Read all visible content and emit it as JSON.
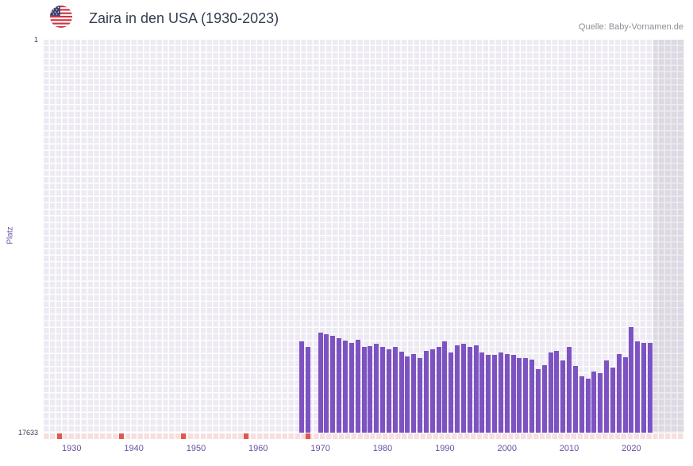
{
  "header": {
    "title": "Zaira in den USA (1930-2023)",
    "source": "Quelle: Baby-Vornamen.de",
    "flag_icon": "us-flag-icon"
  },
  "axes": {
    "y_label": "Platz",
    "y_top_tick": "1",
    "y_bottom_tick": "17633",
    "x_ticks": [
      "1930",
      "1940",
      "1950",
      "1960",
      "1970",
      "1980",
      "1990",
      "2000",
      "2010",
      "2020"
    ]
  },
  "colors": {
    "bar": "#7d53c2",
    "plot_background": "#edeaf3",
    "gridline": "#ffffff",
    "axis_label_text": "#6a4fa5",
    "title_text": "#333d50",
    "source_text": "#8d8d98",
    "no_data_strip": "#f6dfe0",
    "no_data_marker": "#df574f",
    "recent_band": "rgba(104,98,126,0.12)"
  },
  "chart_data": {
    "type": "bar",
    "title": "Zaira in den USA (1930-2023)",
    "xlabel": "",
    "ylabel": "Platz",
    "y_axis": {
      "min": 1,
      "max": 17633,
      "inverted": true
    },
    "x_domain": [
      1926,
      2029
    ],
    "recent_band_start": 2024,
    "no_data_markers": [
      1928,
      1938,
      1948,
      1958,
      1968
    ],
    "legend": "none",
    "grid": true,
    "series": [
      {
        "name": "Zaira",
        "points": [
          [
            1967,
            13550
          ],
          [
            1968,
            13800
          ],
          [
            1970,
            13150
          ],
          [
            1971,
            13200
          ],
          [
            1972,
            13300
          ],
          [
            1973,
            13400
          ],
          [
            1974,
            13500
          ],
          [
            1975,
            13600
          ],
          [
            1976,
            13450
          ],
          [
            1977,
            13800
          ],
          [
            1978,
            13750
          ],
          [
            1979,
            13650
          ],
          [
            1980,
            13800
          ],
          [
            1981,
            13900
          ],
          [
            1982,
            13800
          ],
          [
            1983,
            14000
          ],
          [
            1984,
            14200
          ],
          [
            1985,
            14100
          ],
          [
            1986,
            14300
          ],
          [
            1987,
            13950
          ],
          [
            1988,
            13900
          ],
          [
            1989,
            13800
          ],
          [
            1990,
            13550
          ],
          [
            1991,
            14050
          ],
          [
            1992,
            13700
          ],
          [
            1993,
            13650
          ],
          [
            1994,
            13800
          ],
          [
            1995,
            13700
          ],
          [
            1996,
            14050
          ],
          [
            1997,
            14150
          ],
          [
            1998,
            14150
          ],
          [
            1999,
            14050
          ],
          [
            2000,
            14100
          ],
          [
            2001,
            14150
          ],
          [
            2002,
            14300
          ],
          [
            2003,
            14300
          ],
          [
            2004,
            14350
          ],
          [
            2005,
            14800
          ],
          [
            2006,
            14600
          ],
          [
            2007,
            14050
          ],
          [
            2008,
            13950
          ],
          [
            2009,
            14400
          ],
          [
            2010,
            13800
          ],
          [
            2011,
            14650
          ],
          [
            2012,
            15100
          ],
          [
            2013,
            15200
          ],
          [
            2014,
            14900
          ],
          [
            2015,
            14950
          ],
          [
            2016,
            14400
          ],
          [
            2017,
            14700
          ],
          [
            2018,
            14100
          ],
          [
            2019,
            14250
          ],
          [
            2020,
            12900
          ],
          [
            2021,
            13550
          ],
          [
            2022,
            13600
          ],
          [
            2023,
            13600
          ]
        ]
      }
    ]
  }
}
